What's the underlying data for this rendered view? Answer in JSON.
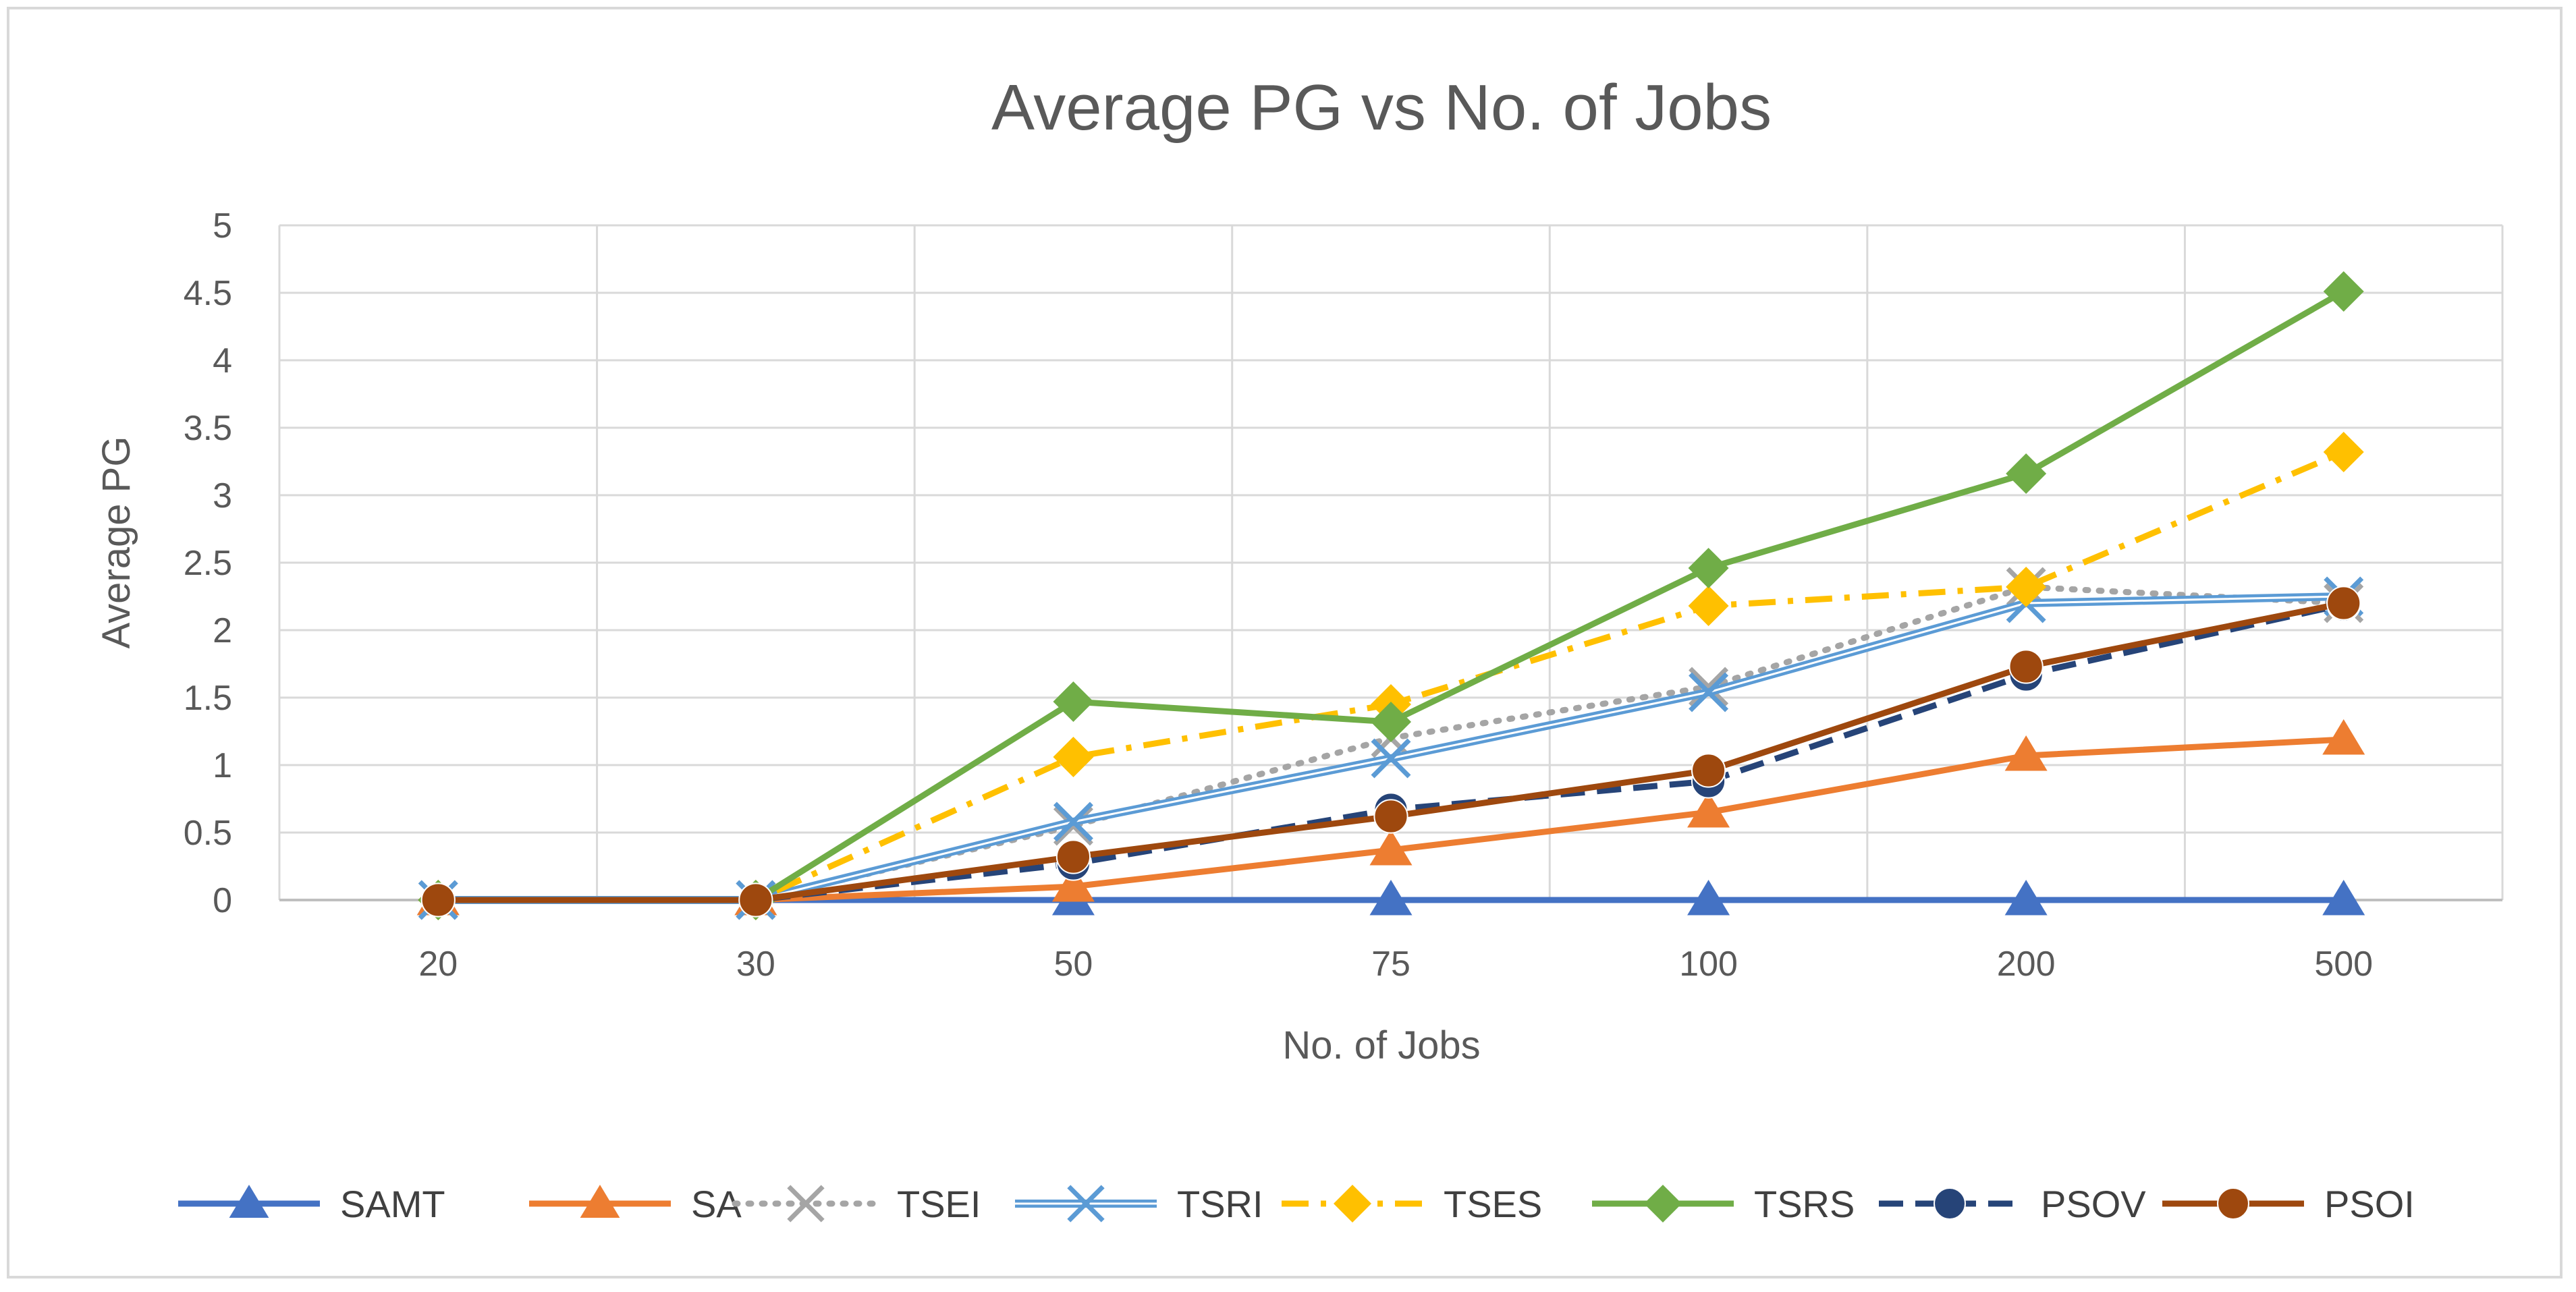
{
  "chart_data": {
    "type": "line",
    "title": "Average PG vs No. of Jobs",
    "xlabel": "No. of Jobs",
    "ylabel": "Average PG",
    "categories": [
      "20",
      "30",
      "50",
      "75",
      "100",
      "200",
      "500"
    ],
    "ylim": [
      0,
      5
    ],
    "yticks": [
      0,
      0.5,
      1,
      1.5,
      2,
      2.5,
      3,
      3.5,
      4,
      4.5,
      5
    ],
    "ytick_labels": [
      "0",
      "0.5",
      "1",
      "1.5",
      "2",
      "2.5",
      "3",
      "3.5",
      "4",
      "4.5",
      "5"
    ],
    "grid": true,
    "legend_position": "bottom",
    "series": [
      {
        "name": "SAMT",
        "color": "#4472c4",
        "dash": "solid",
        "marker": "triangle",
        "values": [
          0,
          0,
          0,
          0,
          0,
          0,
          0
        ]
      },
      {
        "name": "SA",
        "color": "#ed7d31",
        "dash": "solid",
        "marker": "triangle",
        "values": [
          0,
          0,
          0.1,
          0.37,
          0.65,
          1.07,
          1.19
        ]
      },
      {
        "name": "TSEI",
        "color": "#a5a5a5",
        "dash": "dot",
        "marker": "x",
        "values": [
          0,
          0,
          0.55,
          1.2,
          1.58,
          2.32,
          2.2
        ]
      },
      {
        "name": "TSRI",
        "color": "#5b9bd5",
        "dash": "double",
        "marker": "x",
        "values": [
          0,
          0,
          0.58,
          1.05,
          1.54,
          2.2,
          2.25
        ]
      },
      {
        "name": "TSES",
        "color": "#ffc000",
        "dash": "dashdot",
        "marker": "diamond",
        "values": [
          0,
          0,
          1.06,
          1.45,
          2.18,
          2.32,
          3.32
        ]
      },
      {
        "name": "TSRS",
        "color": "#70ad47",
        "dash": "solid",
        "marker": "diamond",
        "values": [
          0,
          0,
          1.47,
          1.32,
          2.46,
          3.16,
          4.51
        ]
      },
      {
        "name": "PSOV",
        "color": "#264478",
        "dash": "dash",
        "marker": "circle",
        "values": [
          0,
          0,
          0.27,
          0.67,
          0.88,
          1.67,
          2.19
        ]
      },
      {
        "name": "PSOI",
        "color": "#9e480e",
        "dash": "solid",
        "marker": "circle",
        "values": [
          0,
          0,
          0.32,
          0.62,
          0.96,
          1.73,
          2.2
        ]
      }
    ]
  }
}
